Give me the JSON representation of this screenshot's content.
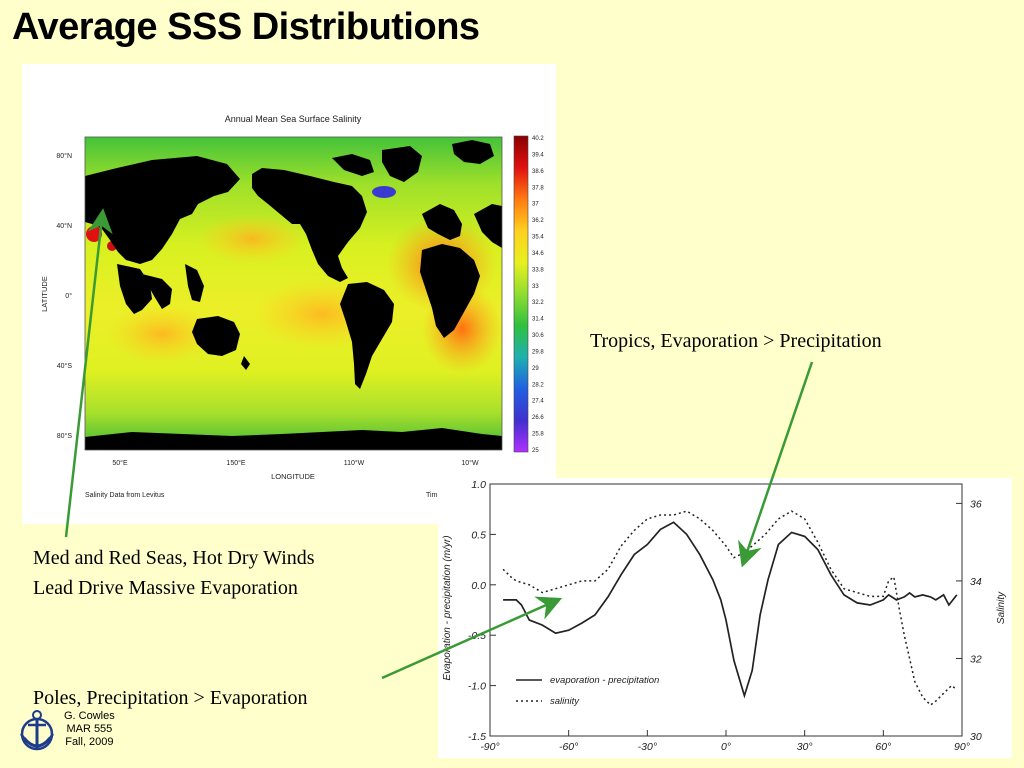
{
  "slide": {
    "title": "Average SSS Distributions",
    "annotations": {
      "tropics": "Tropics, Evaporation > Precipitation",
      "med_line1": "Med and Red  Seas, Hot Dry Winds",
      "med_line2": "Lead Drive Massive Evaporation",
      "poles": "Poles, Precipitation > Evaporation"
    },
    "credit": {
      "line1": "G. Cowles",
      "line2": "MAR 555",
      "line3": "Fall, 2009"
    },
    "arrow_color": "#3a9a35"
  },
  "map": {
    "title": "Annual Mean Sea Surface Salinity",
    "xlabel": "LONGITUDE",
    "ylabel": "LATITUDE",
    "lat_ticks": [
      "80°N",
      "40°N",
      "0°",
      "40°S",
      "80°S"
    ],
    "lon_ticks": [
      "50°E",
      "150°E",
      "110°W",
      "10°W"
    ],
    "source": "Salinity Data from Levitus",
    "source_right": "Tim",
    "colorbar_labels": [
      "40.2",
      "39.4",
      "38.6",
      "37.8",
      "37",
      "36.2",
      "35.4",
      "34.6",
      "33.8",
      "33",
      "32.2",
      "31.4",
      "30.6",
      "29.8",
      "29",
      "28.2",
      "27.4",
      "26.6",
      "25.8",
      "25"
    ]
  },
  "graph": {
    "legend_ep": "evaporation - precipitation",
    "legend_sal": "salinity",
    "ylabel_left": "Evaporation - precipitation (m/yr)",
    "ylabel_right": "Salinity",
    "left_ticks": [
      "1.0",
      "0.5",
      "0.0",
      "-0.5",
      "-1.0",
      "-1.5"
    ],
    "right_ticks": [
      "36",
      "34",
      "32",
      "30"
    ],
    "x_ticks": [
      "-90°",
      "-60°",
      "-30°",
      "0°",
      "30°",
      "60°",
      "90°"
    ]
  },
  "chart_data": {
    "type": "line",
    "xlabel": "",
    "x_ticks": [
      "-90°",
      "-60°",
      "-30°",
      "0°",
      "30°",
      "60°",
      "90°"
    ],
    "ylim_left": [
      -1.5,
      1.0
    ],
    "ylim_right": [
      30,
      36.5
    ],
    "series": [
      {
        "name": "evaporation - precipitation",
        "axis": "left",
        "x": [
          -85,
          -80,
          -78,
          -75,
          -72,
          -70,
          -65,
          -60,
          -55,
          -50,
          -45,
          -40,
          -35,
          -30,
          -25,
          -20,
          -15,
          -10,
          -5,
          -2,
          0,
          3,
          7,
          10,
          13,
          16,
          20,
          25,
          30,
          35,
          40,
          45,
          50,
          55,
          60,
          62,
          65,
          68,
          70,
          72,
          75,
          78,
          80,
          83,
          85,
          88
        ],
        "y": [
          -0.15,
          -0.15,
          -0.2,
          -0.35,
          -0.38,
          -0.4,
          -0.48,
          -0.45,
          -0.38,
          -0.3,
          -0.12,
          0.1,
          0.3,
          0.4,
          0.55,
          0.62,
          0.5,
          0.3,
          0.05,
          -0.15,
          -0.35,
          -0.75,
          -1.1,
          -0.85,
          -0.3,
          0.05,
          0.4,
          0.52,
          0.48,
          0.35,
          0.1,
          -0.1,
          -0.18,
          -0.2,
          -0.15,
          -0.1,
          -0.15,
          -0.12,
          -0.08,
          -0.12,
          -0.1,
          -0.12,
          -0.15,
          -0.1,
          -0.2,
          -0.1
        ]
      },
      {
        "name": "salinity",
        "axis": "right",
        "x": [
          -85,
          -82,
          -80,
          -75,
          -70,
          -65,
          -60,
          -55,
          -50,
          -45,
          -40,
          -35,
          -30,
          -25,
          -20,
          -15,
          -10,
          -5,
          0,
          3,
          6,
          10,
          15,
          20,
          25,
          30,
          35,
          40,
          45,
          50,
          55,
          60,
          62,
          64,
          66,
          68,
          70,
          72,
          75,
          78,
          80,
          83,
          86,
          88
        ],
        "y": [
          34.3,
          34.1,
          34.0,
          33.9,
          33.7,
          33.8,
          33.9,
          34.0,
          34.0,
          34.3,
          34.9,
          35.3,
          35.6,
          35.7,
          35.7,
          35.8,
          35.6,
          35.3,
          34.9,
          34.6,
          34.7,
          34.9,
          35.2,
          35.6,
          35.8,
          35.6,
          35.0,
          34.3,
          33.8,
          33.7,
          33.6,
          33.6,
          34.0,
          34.1,
          33.3,
          32.6,
          32.0,
          31.4,
          31.0,
          30.8,
          30.9,
          31.1,
          31.3,
          31.2
        ]
      }
    ]
  }
}
